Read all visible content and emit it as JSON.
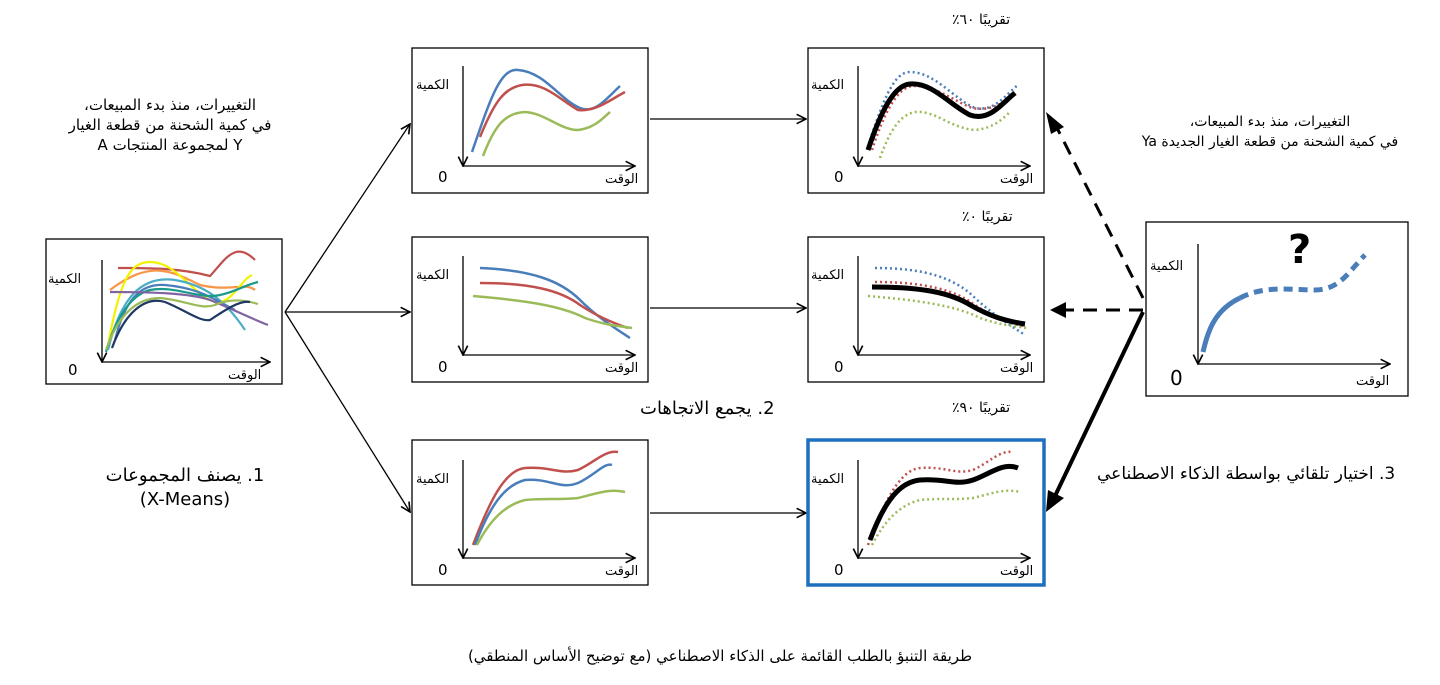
{
  "axis": {
    "quantity": "الكمية",
    "time": "الوقت",
    "zero": "0"
  },
  "source_text": {
    "line1": "التغييرات، منذ بدء المبيعات،",
    "line2": "في كمية الشحنة من قطعة الغيار",
    "line3": "Y لمجموعة المنتجات A"
  },
  "new_part_text": {
    "line1": "التغييرات، منذ بدء المبيعات،",
    "line2": "في كمية الشحنة من قطعة الغيار الجديدة Ya"
  },
  "steps": {
    "step1_line1": "1. يصنف المجموعات",
    "step1_line2": "(X-Means)",
    "step2": "2. يجمع الاتجاهات",
    "step3": "3. اختيار تلقائي بواسطة الذكاء الاصطناعي"
  },
  "similarity": {
    "top": "تقريبًا ٦٠٪",
    "middle": "تقريبًا ٠٪",
    "bottom": "تقريبًا ٩٠٪"
  },
  "unknown_mark": "?",
  "caption": "طريقة التنبؤ بالطلب القائمة على الذكاء الاصطناعي (مع توضيح الأساس المنطقي)",
  "colors": {
    "blue": "#4a7ebb",
    "red": "#c0504d",
    "green": "#9bbb59",
    "black": "#000000",
    "highlight_border": "#1f6fbf",
    "yellow": "#f2f200",
    "teal": "#1a9a8a",
    "purple": "#8064a2",
    "navy": "#1f3864",
    "orange": "#f79646",
    "lightblue": "#4bacc6"
  }
}
